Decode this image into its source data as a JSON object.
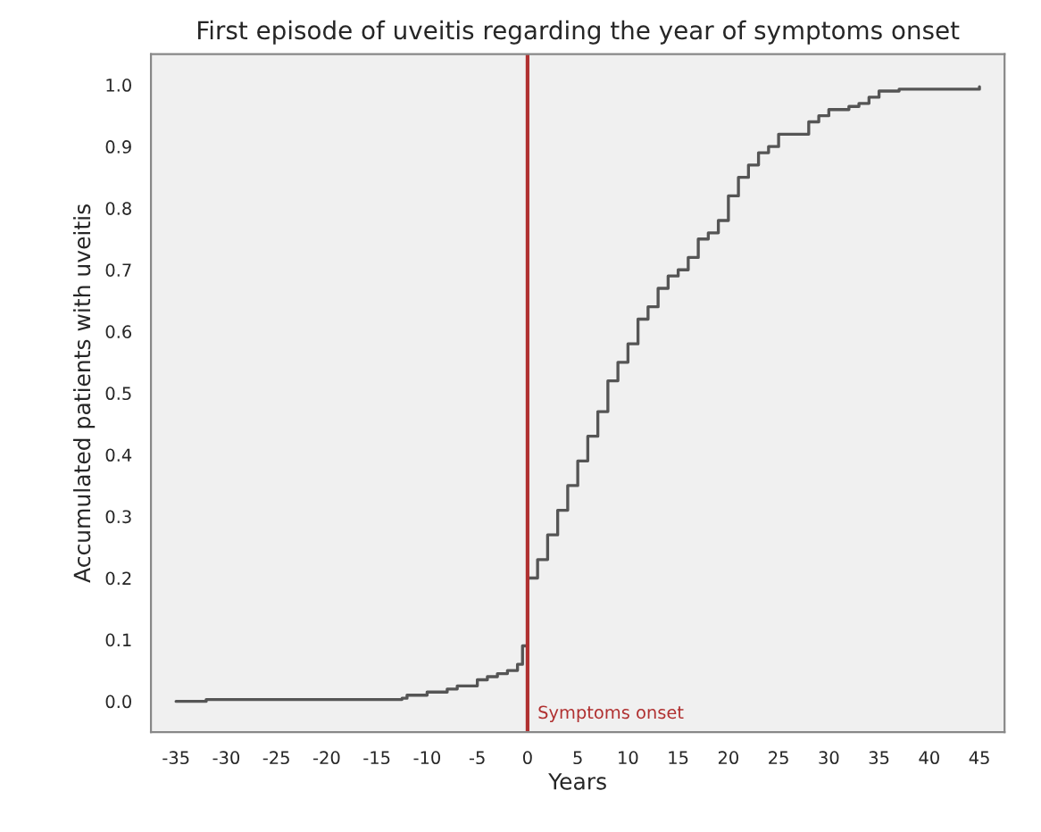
{
  "chart_data": {
    "type": "step",
    "title": "First episode of uveitis regarding the year of symptoms onset",
    "xlabel": "Years",
    "ylabel": "Accumulated patients with uveitis",
    "series": [
      {
        "color": "#555555",
        "x": [
          -35,
          -32,
          -12.5,
          -12,
          -10,
          -8,
          -7,
          -5,
          -4,
          -3,
          -2,
          -1,
          -0.5,
          0,
          1,
          2,
          3,
          4,
          5,
          6,
          7,
          8,
          9,
          10,
          11,
          12,
          13,
          14,
          15,
          16,
          17,
          18,
          19,
          20,
          21,
          22,
          23,
          24,
          25,
          27,
          28,
          29,
          30,
          32,
          33,
          34,
          35,
          37,
          45
        ],
        "values": [
          0.0,
          0.003,
          0.005,
          0.01,
          0.015,
          0.02,
          0.025,
          0.035,
          0.04,
          0.045,
          0.05,
          0.06,
          0.09,
          0.2,
          0.23,
          0.27,
          0.31,
          0.35,
          0.39,
          0.43,
          0.47,
          0.52,
          0.55,
          0.58,
          0.62,
          0.64,
          0.67,
          0.69,
          0.7,
          0.72,
          0.75,
          0.76,
          0.78,
          0.82,
          0.85,
          0.87,
          0.89,
          0.9,
          0.92,
          0.92,
          0.94,
          0.95,
          0.96,
          0.965,
          0.97,
          0.98,
          0.99,
          0.993,
          0.997
        ]
      }
    ],
    "xlim": [
      -37.5,
      47.5
    ],
    "ylim": [
      -0.05,
      1.05
    ],
    "xticks": [
      -35,
      -30,
      -25,
      -20,
      -15,
      -10,
      -5,
      0,
      5,
      10,
      15,
      20,
      25,
      30,
      35,
      40,
      45
    ],
    "yticks": [
      {
        "value": 0,
        "label": "0.0"
      },
      {
        "value": 0.1,
        "label": "0.1"
      },
      {
        "value": 0.2,
        "label": "0.2"
      },
      {
        "value": 0.3,
        "label": "0.3"
      },
      {
        "value": 0.4,
        "label": "0.4"
      },
      {
        "value": 0.5,
        "label": "0.5"
      },
      {
        "value": 0.6,
        "label": "0.6"
      },
      {
        "value": 0.7,
        "label": "0.7"
      },
      {
        "value": 0.8,
        "label": "0.8"
      },
      {
        "value": 0.9,
        "label": "0.9"
      },
      {
        "value": 1.0,
        "label": "1.0"
      }
    ],
    "ref_lines": [
      {
        "axis": "x",
        "value": 0,
        "label": "Symptoms onset",
        "color": "#b03030"
      }
    ],
    "grid": false,
    "legend": false
  }
}
